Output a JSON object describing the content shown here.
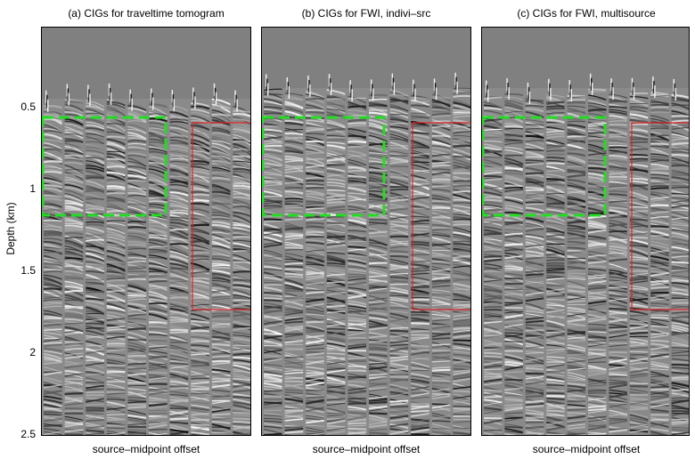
{
  "figure": {
    "ylabel": "Depth (km)",
    "yticks": [
      "0.5",
      "1",
      "1.5",
      "2",
      "2.5"
    ],
    "panels": [
      {
        "title": "(a) CIGs for traveltime tomogram",
        "xlabel": "source–midpoint offset"
      },
      {
        "title": "(b) CIGs for FWI, indivi–src",
        "xlabel": "source–midpoint offset"
      },
      {
        "title": "(c) CIGs for FWI, multisource",
        "xlabel": "source–midpoint offset"
      }
    ]
  },
  "colors": {
    "background": "#808080",
    "green_box": "#22dd22",
    "red_box": "#dd2222"
  }
}
